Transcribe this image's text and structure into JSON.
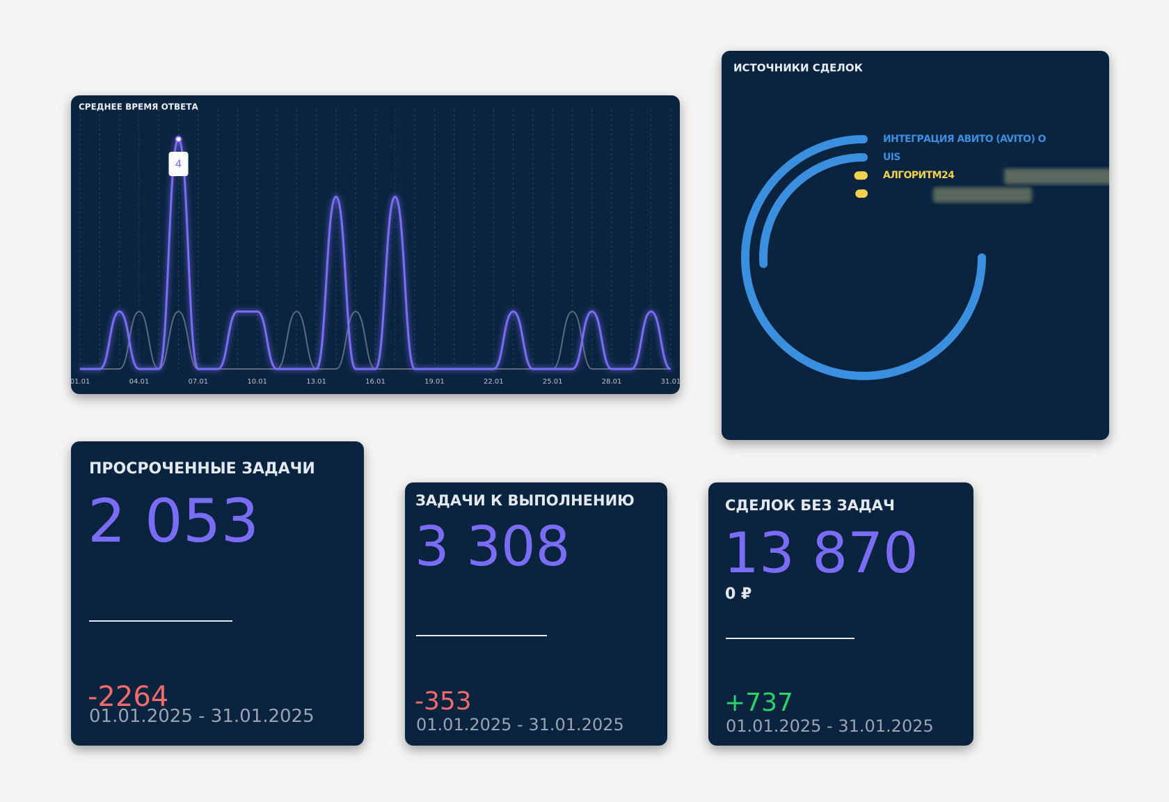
{
  "chart_data": [
    {
      "type": "line",
      "title": "СРЕДНЕЕ ВРЕМЯ ОТВЕТА",
      "categories": [
        "01.01",
        null,
        null,
        "04.01",
        null,
        null,
        "07.01",
        null,
        null,
        "10.01",
        null,
        null,
        "13.01",
        null,
        null,
        "16.01",
        null,
        null,
        "19.01",
        null,
        null,
        "22.01",
        null,
        null,
        "25.01",
        null,
        null,
        "28.01",
        null,
        null,
        "31.01"
      ],
      "series": [
        {
          "color": "#7b6cf6",
          "values": [
            0,
            0,
            1,
            0,
            0,
            4,
            0,
            0,
            1,
            1,
            0,
            0,
            0,
            3,
            0,
            0,
            3,
            0,
            0,
            0,
            0,
            0,
            1,
            0,
            0,
            0,
            1,
            0,
            0,
            1,
            0
          ]
        },
        {
          "color": "#5d6c7d",
          "values": [
            0,
            0,
            0,
            1,
            0,
            1,
            0,
            0,
            0,
            0,
            0,
            1,
            0,
            0,
            1,
            0,
            0,
            0,
            0,
            0,
            0,
            0,
            0,
            0,
            0,
            1,
            0,
            0,
            0,
            0,
            0
          ]
        }
      ],
      "ylim": [
        0,
        4.4
      ],
      "grid": true
    },
    {
      "type": "radial_bar",
      "title": "ИСТОЧНИКИ СДЕЛОК",
      "categories": [
        "ИНТЕГРАЦИЯ АВИТО (AVITO) О",
        "UIS",
        "АЛГОРИТМ24",
        null
      ],
      "values": [
        75,
        26,
        1,
        1
      ],
      "colors": [
        "#3b8fdf",
        "#3b8fdf",
        "#f2d24c",
        "#f2d24c"
      ],
      "ylim": [
        0,
        100
      ]
    }
  ],
  "widgets": [
    {
      "title": "ПРОСРОЧЕННЫЕ ЗАДАЧИ",
      "value": "2 053",
      "delta": "-2264",
      "period": "01.01.2025 - 31.01.2025"
    },
    {
      "title": "ЗАДАЧИ К ВЫПОЛНЕНИЮ",
      "value": "3 308",
      "delta": "-353",
      "period": "01.01.2025 - 31.01.2025"
    },
    {
      "title": "СДЕЛОК БЕЗ ЗАДАЧ",
      "value": "13 870",
      "sum": "0 ₽",
      "delta": "+737",
      "period": "01.01.2025 - 31.01.2025"
    }
  ]
}
